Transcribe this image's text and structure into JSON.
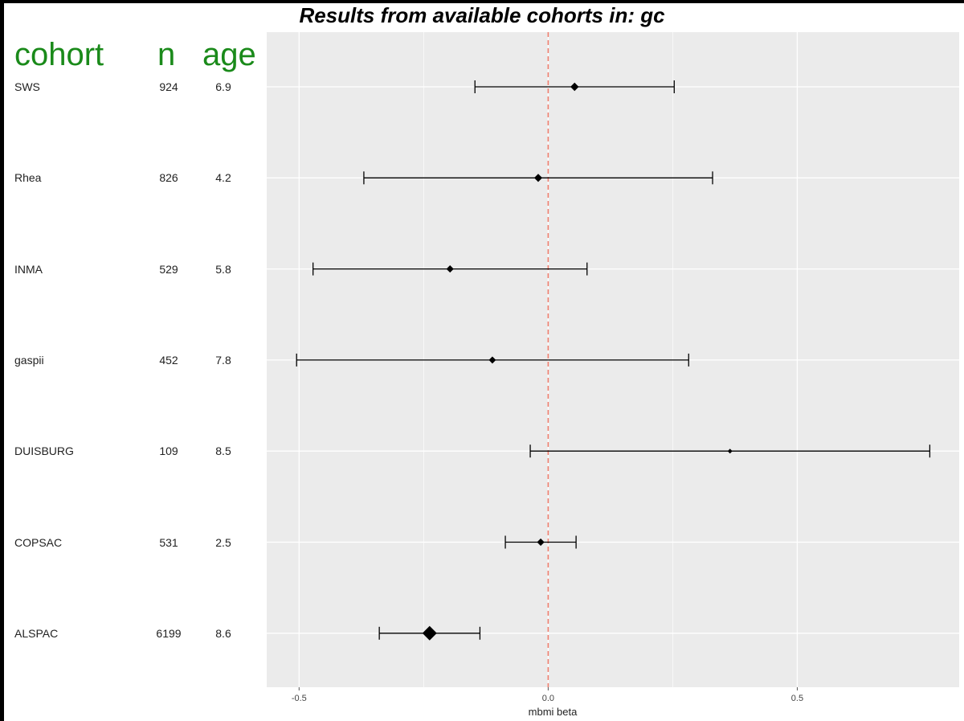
{
  "title": "Results from available cohorts in: gc",
  "headers": {
    "cohort": "cohort",
    "n": "n",
    "age": "age"
  },
  "chart_data": {
    "type": "forest",
    "xlabel": "mbmi beta",
    "xlim": [
      -0.565,
      0.825
    ],
    "xticks": [
      -0.5,
      0.0,
      0.5
    ],
    "xtick_labels": [
      "-0.5",
      "0.0",
      "0.5"
    ],
    "reference_line": 0.0,
    "grid": true,
    "rows": [
      {
        "cohort": "SWS",
        "n": "924",
        "age": "6.9",
        "estimate": 0.053,
        "lower": -0.147,
        "upper": 0.253
      },
      {
        "cohort": "Rhea",
        "n": "826",
        "age": "4.2",
        "estimate": -0.02,
        "lower": -0.37,
        "upper": 0.33
      },
      {
        "cohort": "INMA",
        "n": "529",
        "age": "5.8",
        "estimate": -0.197,
        "lower": -0.472,
        "upper": 0.078
      },
      {
        "cohort": "gaspii",
        "n": "452",
        "age": "7.8",
        "estimate": -0.112,
        "lower": -0.505,
        "upper": 0.282
      },
      {
        "cohort": "DUISBURG",
        "n": "109",
        "age": "8.5",
        "estimate": 0.365,
        "lower": -0.036,
        "upper": 0.766
      },
      {
        "cohort": "COPSAC",
        "n": "531",
        "age": "2.5",
        "estimate": -0.015,
        "lower": -0.086,
        "upper": 0.056
      },
      {
        "cohort": "ALSPAC",
        "n": "6199",
        "age": "8.6",
        "estimate": -0.238,
        "lower": -0.339,
        "upper": -0.137
      }
    ]
  },
  "colors": {
    "panel_bg": "#ebebeb",
    "grid": "#ffffff",
    "reference_line": "#f08070",
    "header_green": "#1a8a1a"
  }
}
